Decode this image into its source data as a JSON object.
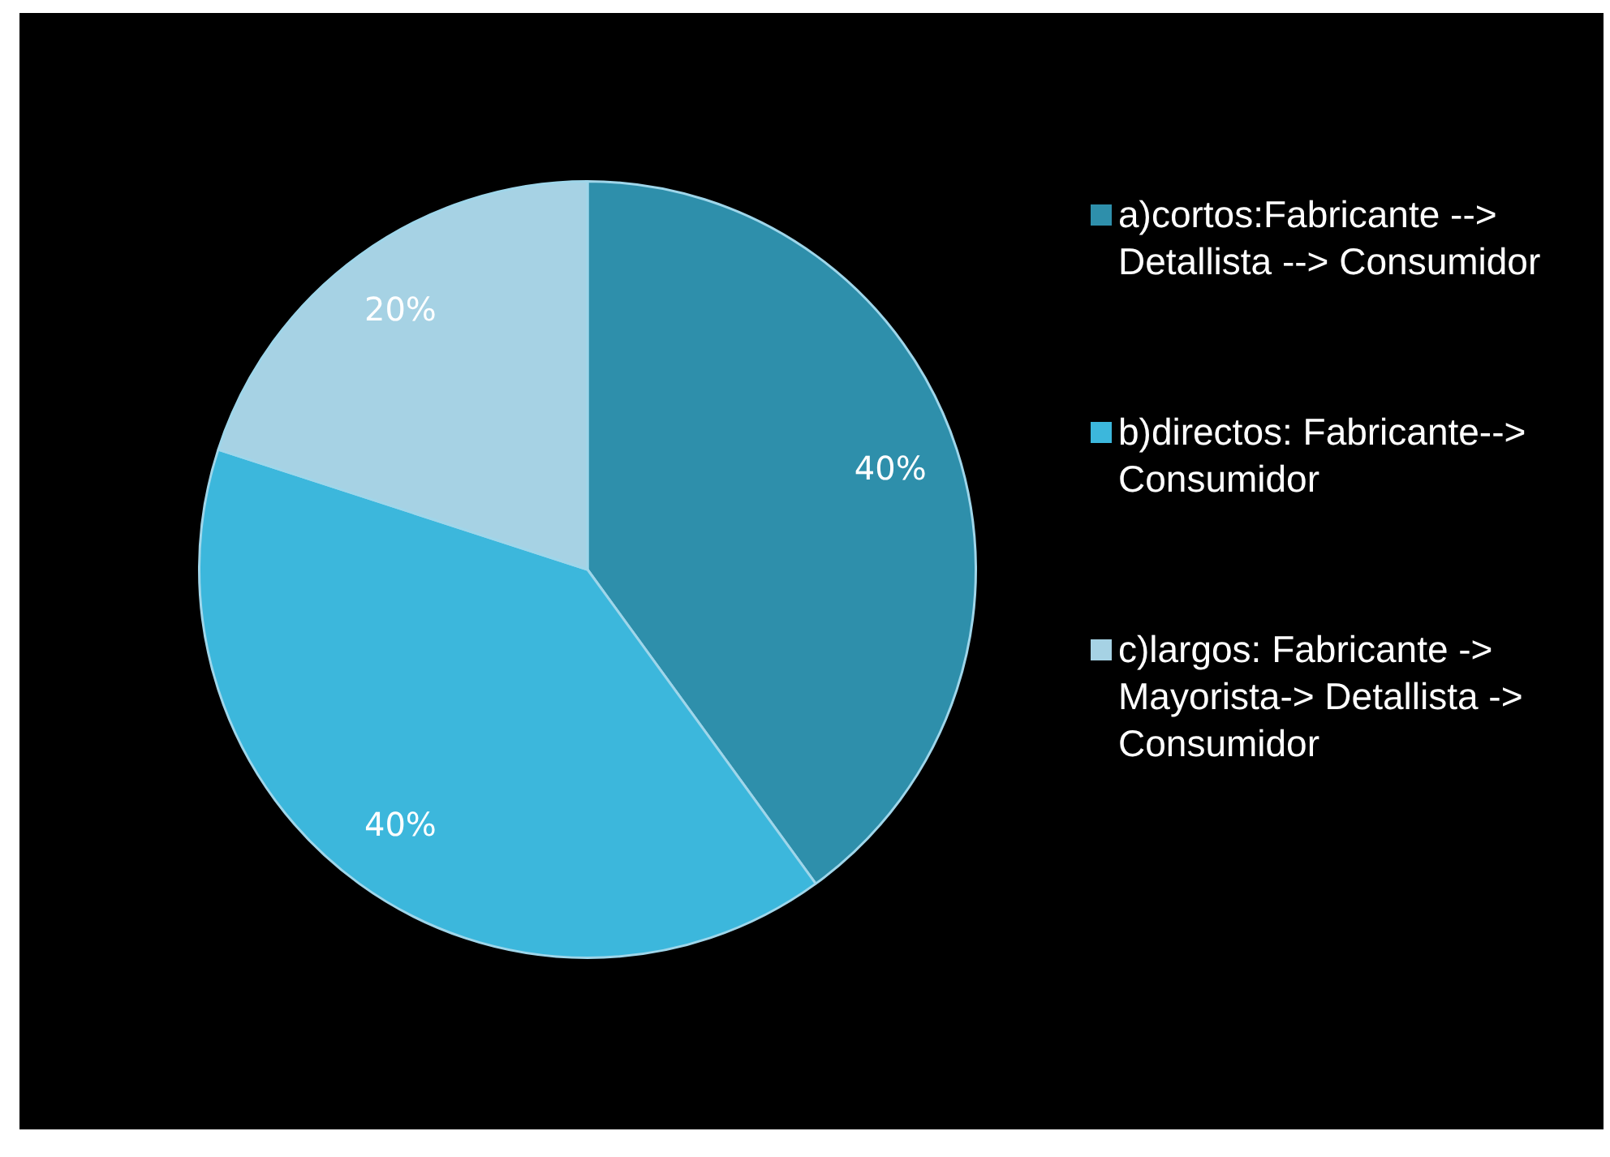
{
  "chart_data": {
    "type": "pie",
    "categories": [
      "a)cortos:Fabricante --> Detallista --> Consumidor",
      "b)directos: Fabricante--> Consumidor",
      "c)largos: Fabricante -> Mayorista-> Detallista -> Consumidor"
    ],
    "values": [
      40,
      40,
      20
    ],
    "colors": [
      "#2e8fab",
      "#3cb7dc",
      "#a6d2e4"
    ],
    "value_labels": [
      "40%",
      "40%",
      "20%"
    ],
    "legend": "right"
  }
}
